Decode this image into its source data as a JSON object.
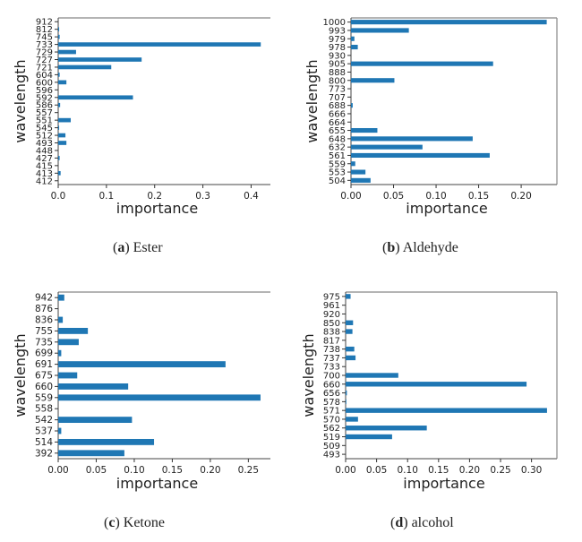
{
  "chart_data": [
    {
      "id": "a",
      "type": "bar",
      "orientation": "horizontal",
      "caption_letter": "a",
      "caption_title": "Ester",
      "xlabel": "importance",
      "ylabel": "wavelength",
      "xlim": [
        0,
        0.44
      ],
      "xticks": [
        "0.0",
        "0.1",
        "0.2",
        "0.3",
        "0.4"
      ],
      "xtick_values": [
        0.0,
        0.1,
        0.2,
        0.3,
        0.4
      ],
      "categories": [
        "912",
        "812",
        "745",
        "733",
        "729",
        "727",
        "721",
        "604",
        "600",
        "596",
        "592",
        "586",
        "557",
        "551",
        "545",
        "512",
        "493",
        "448",
        "427",
        "415",
        "413",
        "412"
      ],
      "values": [
        0.0,
        0.002,
        0.003,
        0.42,
        0.037,
        0.173,
        0.11,
        0.003,
        0.017,
        0.0,
        0.155,
        0.004,
        0.0,
        0.026,
        0.002,
        0.015,
        0.017,
        0.0,
        0.003,
        0.0,
        0.005,
        0.0
      ],
      "color": "#1f77b4",
      "grid": false
    },
    {
      "id": "b",
      "type": "bar",
      "orientation": "horizontal",
      "caption_letter": "b",
      "caption_title": "Aldehyde",
      "xlabel": "importance",
      "ylabel": "wavelength",
      "xlim": [
        0,
        0.242
      ],
      "xticks": [
        "0.00",
        "0.05",
        "0.10",
        "0.15",
        "0.20"
      ],
      "xtick_values": [
        0.0,
        0.05,
        0.1,
        0.15,
        0.2
      ],
      "categories": [
        "1000",
        "993",
        "979",
        "978",
        "930",
        "905",
        "888",
        "800",
        "773",
        "707",
        "688",
        "666",
        "664",
        "655",
        "648",
        "632",
        "561",
        "559",
        "553",
        "504"
      ],
      "values": [
        0.23,
        0.068,
        0.004,
        0.008,
        0.0,
        0.167,
        0.0,
        0.051,
        0.0,
        0.0,
        0.002,
        0.0,
        0.0,
        0.031,
        0.143,
        0.084,
        0.163,
        0.005,
        0.017,
        0.023
      ],
      "color": "#1f77b4",
      "grid": false
    },
    {
      "id": "c",
      "type": "bar",
      "orientation": "horizontal",
      "caption_letter": "c",
      "caption_title": "Ketone",
      "xlabel": "importance",
      "ylabel": "wavelength",
      "xlim": [
        0,
        0.279
      ],
      "xticks": [
        "0.00",
        "0.05",
        "0.10",
        "0.15",
        "0.20",
        "0.25"
      ],
      "xtick_values": [
        0.0,
        0.05,
        0.1,
        0.15,
        0.2,
        0.25
      ],
      "categories": [
        "942",
        "876",
        "836",
        "755",
        "735",
        "699",
        "691",
        "675",
        "660",
        "559",
        "558",
        "542",
        "537",
        "514",
        "392"
      ],
      "values": [
        0.008,
        0.0,
        0.006,
        0.039,
        0.027,
        0.004,
        0.22,
        0.025,
        0.092,
        0.266,
        0.0,
        0.097,
        0.004,
        0.126,
        0.087
      ],
      "color": "#1f77b4",
      "grid": false
    },
    {
      "id": "d",
      "type": "bar",
      "orientation": "horizontal",
      "caption_letter": "d",
      "caption_title": "alcohol",
      "xlabel": "importance",
      "ylabel": "wavelength",
      "xlim": [
        0,
        0.341
      ],
      "xticks": [
        "0.00",
        "0.05",
        "0.10",
        "0.15",
        "0.20",
        "0.25",
        "0.30"
      ],
      "xtick_values": [
        0.0,
        0.05,
        0.1,
        0.15,
        0.2,
        0.25,
        0.3
      ],
      "categories": [
        "975",
        "961",
        "920",
        "850",
        "838",
        "817",
        "738",
        "737",
        "733",
        "700",
        "660",
        "656",
        "578",
        "571",
        "570",
        "562",
        "519",
        "509",
        "493"
      ],
      "values": [
        0.008,
        0.0,
        0.0,
        0.012,
        0.011,
        0.0,
        0.014,
        0.016,
        0.0,
        0.085,
        0.292,
        0.002,
        0.001,
        0.325,
        0.02,
        0.131,
        0.075,
        0.0,
        0.0
      ],
      "color": "#1f77b4",
      "grid": false
    }
  ]
}
